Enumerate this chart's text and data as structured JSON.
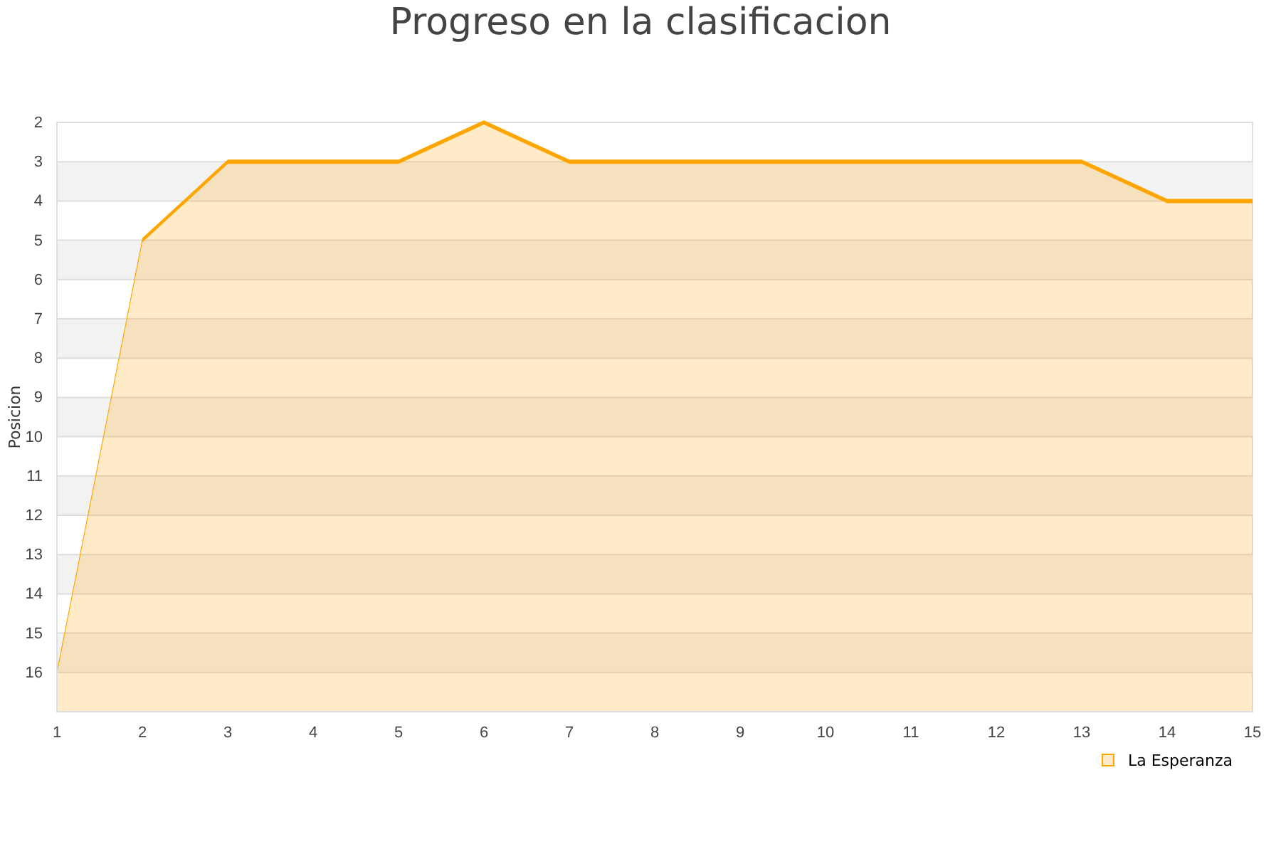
{
  "chart_data": {
    "type": "area",
    "title": "Progreso en la clasificacion",
    "ylabel": "Posicion",
    "x": [
      1,
      2,
      3,
      4,
      5,
      6,
      7,
      8,
      9,
      10,
      11,
      12,
      13,
      14,
      15
    ],
    "series": [
      {
        "name": "La Esperanza",
        "color": "#ffa500",
        "values": [
          16,
          5,
          3,
          3,
          3,
          2,
          3,
          3,
          3,
          3,
          3,
          3,
          3,
          4,
          4
        ]
      }
    ],
    "xlim": [
      1,
      15
    ],
    "xticks": [
      1,
      2,
      3,
      4,
      5,
      6,
      7,
      8,
      9,
      10,
      11,
      12,
      13,
      14,
      15
    ],
    "ylim": [
      17,
      2
    ],
    "yticks": [
      2,
      3,
      4,
      5,
      6,
      7,
      8,
      9,
      10,
      11,
      12,
      13,
      14,
      15,
      16
    ],
    "grid": "y",
    "legend": "bottom right"
  }
}
